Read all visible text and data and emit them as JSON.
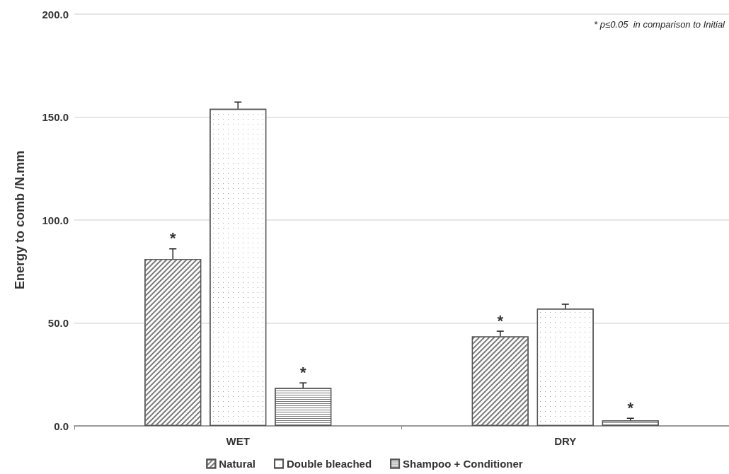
{
  "chart_data": {
    "type": "bar",
    "ylabel": "Energy to comb /N.mm",
    "categories": [
      "WET",
      "DRY"
    ],
    "series": [
      {
        "name": "Natural",
        "color": "#ffffff",
        "values": [
          81.1,
          43.5
        ],
        "errors": [
          4.9,
          2.5
        ],
        "value_labels": [
          "*",
          "*"
        ]
      },
      {
        "name": "Double bleached",
        "color": "#ffffff",
        "values": [
          154.0,
          57.0
        ],
        "errors": [
          3.3,
          2.1
        ]
      },
      {
        "name": "Shampoo + Conditioner",
        "color": "#ffffff",
        "values": [
          18.5,
          2.7
        ],
        "errors": [
          2.4,
          1.0
        ],
        "value_labels": [
          "*",
          "*"
        ]
      }
    ],
    "ylim": [
      0,
      200
    ],
    "yticks": [
      {
        "value": 0,
        "label": "0.0"
      },
      {
        "value": 50,
        "label": "50.0"
      },
      {
        "value": 100,
        "label": "100.0"
      },
      {
        "value": 150,
        "label": "150.0"
      },
      {
        "value": 200,
        "label": "200.0"
      }
    ],
    "grid": "y",
    "legend": "bottom",
    "annotations": [
      "* p≤0.05  in comparison to Initial"
    ]
  }
}
